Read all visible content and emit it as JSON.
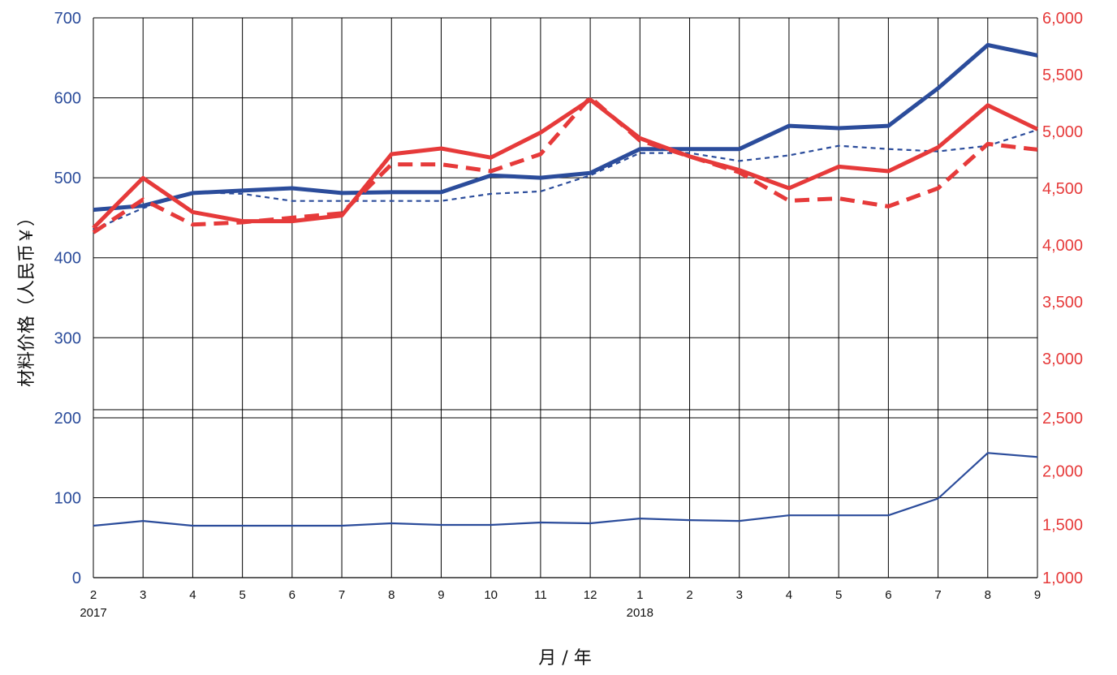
{
  "chart_data": {
    "type": "line",
    "title": "",
    "ylabel": "材料价格（人民币￥）",
    "xlabel": "月 / 年",
    "x_ticks": [
      "2",
      "3",
      "4",
      "5",
      "6",
      "7",
      "8",
      "9",
      "10",
      "11",
      "12",
      "1",
      "2",
      "3",
      "4",
      "5",
      "6",
      "7",
      "8",
      "9"
    ],
    "year_labels": [
      {
        "at_index": 0,
        "label": "2017"
      },
      {
        "at_index": 11,
        "label": "2018"
      }
    ],
    "y_left": {
      "ticks": [
        "0",
        "100",
        "200",
        "300",
        "400",
        "500",
        "600",
        "700"
      ],
      "tick_values": [
        0,
        100,
        200,
        300,
        400,
        500,
        600,
        700
      ],
      "ylim": [
        0,
        700
      ],
      "break_between": [
        200,
        210
      ]
    },
    "y_right": {
      "ticks": [
        "1,000",
        "1,500",
        "2,000",
        "2,500",
        "3,000",
        "3,500",
        "4,000",
        "4,500",
        "5,000",
        "5,500",
        "6,000"
      ],
      "tick_values": [
        1000,
        1500,
        2000,
        2500,
        3000,
        3500,
        4000,
        4500,
        5000,
        5500,
        6000
      ],
      "ylim": [
        1000,
        6000
      ],
      "break_between": [
        2500,
        2550
      ]
    },
    "grid": true,
    "colors": {
      "blue": "#2b4c9b",
      "red": "#e63a3a"
    },
    "series": [
      {
        "axis": "left",
        "color": "#2b4c9b",
        "style": "thick-solid",
        "values": [
          460,
          465,
          481,
          484,
          487,
          481,
          482,
          482,
          503,
          500,
          506,
          536,
          536,
          536,
          565,
          562,
          565,
          612,
          666,
          653
        ]
      },
      {
        "axis": "left",
        "color": "#2b4c9b",
        "style": "thin-dashed",
        "values": [
          435,
          462,
          482,
          480,
          471,
          471,
          471,
          471,
          480,
          483,
          503,
          531,
          531,
          521,
          528,
          540,
          536,
          533,
          540,
          560
        ]
      },
      {
        "axis": "left",
        "color": "#2b4c9b",
        "style": "thin-solid",
        "values": [
          65,
          71,
          65,
          65,
          65,
          65,
          68,
          66,
          66,
          69,
          68,
          74,
          72,
          71,
          78,
          78,
          78,
          99,
          156,
          151
        ]
      },
      {
        "axis": "right",
        "color": "#e63a3a",
        "style": "thick-solid",
        "values": [
          4150,
          4590,
          4290,
          4210,
          4210,
          4260,
          4800,
          4850,
          4770,
          4990,
          5280,
          4940,
          4780,
          4660,
          4500,
          4690,
          4650,
          4860,
          5230,
          5020
        ]
      },
      {
        "axis": "right",
        "color": "#e63a3a",
        "style": "thick-dashed",
        "values": [
          4110,
          4400,
          4180,
          4200,
          4240,
          4280,
          4710,
          4710,
          4650,
          4800,
          5300,
          4920,
          4780,
          4640,
          4390,
          4410,
          4340,
          4500,
          4890,
          4840
        ]
      }
    ]
  }
}
